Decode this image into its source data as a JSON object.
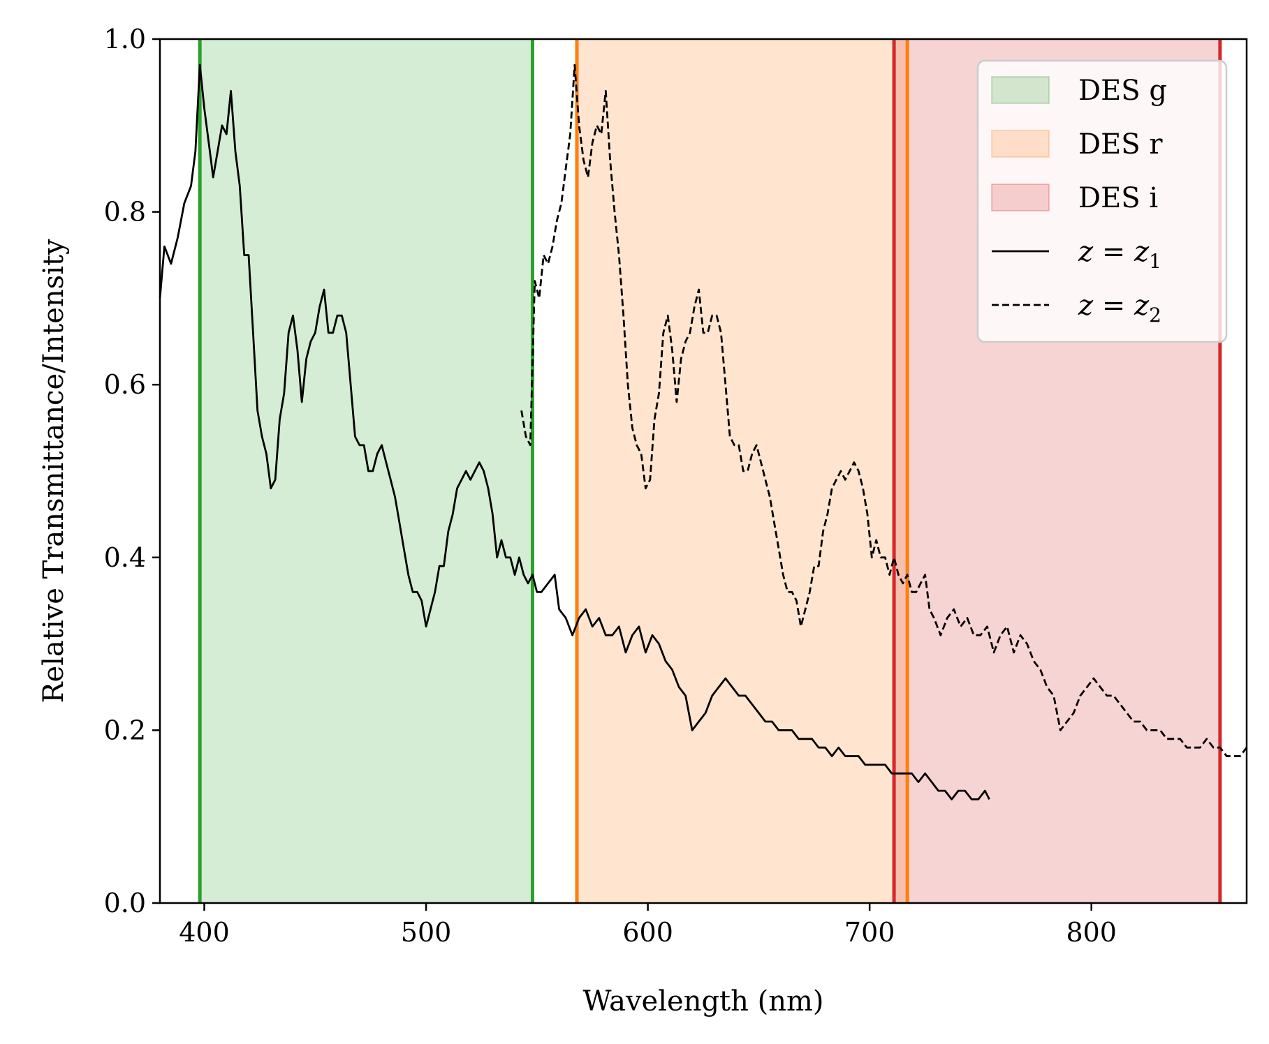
{
  "chart_data": {
    "type": "line",
    "xlabel": "Wavelength (nm)",
    "ylabel": "Relative Transmittance/Intensity",
    "xlim": [
      380,
      870
    ],
    "ylim": [
      0.0,
      1.0
    ],
    "xticks": [
      400,
      500,
      600,
      700,
      800
    ],
    "xtick_labels": [
      "400",
      "500",
      "600",
      "700",
      "800"
    ],
    "yticks": [
      0.0,
      0.2,
      0.4,
      0.6,
      0.8,
      1.0
    ],
    "ytick_labels": [
      "0.0",
      "0.2",
      "0.4",
      "0.6",
      "0.8",
      "1.0"
    ],
    "grid": false,
    "legend_position": "top-right",
    "bands": [
      {
        "name": "DES g",
        "range": [
          398,
          548
        ],
        "color": "#2ca02c"
      },
      {
        "name": "DES r",
        "range": [
          568,
          717
        ],
        "color": "#ff7f0e"
      },
      {
        "name": "DES i",
        "range": [
          711,
          858
        ],
        "color": "#d62728"
      }
    ],
    "series": [
      {
        "name": "z = z1",
        "style": "solid",
        "color": "#000000",
        "x": [
          380,
          382,
          385,
          388,
          391,
          394,
          396,
          398,
          400,
          402,
          404,
          406,
          408,
          410,
          412,
          414,
          416,
          418,
          420,
          422,
          424,
          426,
          428,
          430,
          432,
          434,
          436,
          438,
          440,
          442,
          444,
          446,
          448,
          450,
          452,
          454,
          456,
          458,
          460,
          462,
          464,
          466,
          468,
          470,
          472,
          474,
          476,
          478,
          480,
          482,
          484,
          486,
          488,
          490,
          492,
          494,
          496,
          498,
          500,
          502,
          504,
          506,
          508,
          510,
          512,
          514,
          516,
          518,
          520,
          522,
          524,
          526,
          528,
          530,
          532,
          534,
          536,
          538,
          540,
          542,
          544,
          546,
          548,
          550,
          552,
          555,
          558,
          560,
          563,
          566,
          569,
          572,
          575,
          578,
          581,
          584,
          587,
          590,
          593,
          596,
          599,
          602,
          605,
          608,
          611,
          614,
          617,
          620,
          623,
          626,
          629,
          632,
          635,
          638,
          641,
          644,
          647,
          650,
          653,
          656,
          659,
          662,
          665,
          668,
          671,
          674,
          677,
          680,
          683,
          686,
          689,
          692,
          695,
          698,
          701,
          704,
          707,
          710,
          713,
          716,
          719,
          722,
          725,
          728,
          731,
          734,
          737,
          740,
          743,
          746,
          749,
          752,
          754
        ],
        "y": [
          0.7,
          0.76,
          0.74,
          0.77,
          0.81,
          0.83,
          0.87,
          0.97,
          0.92,
          0.88,
          0.84,
          0.87,
          0.9,
          0.89,
          0.94,
          0.87,
          0.83,
          0.75,
          0.75,
          0.66,
          0.57,
          0.54,
          0.52,
          0.48,
          0.49,
          0.56,
          0.59,
          0.66,
          0.68,
          0.64,
          0.58,
          0.63,
          0.65,
          0.66,
          0.69,
          0.71,
          0.66,
          0.66,
          0.68,
          0.68,
          0.66,
          0.6,
          0.54,
          0.53,
          0.53,
          0.5,
          0.5,
          0.52,
          0.53,
          0.51,
          0.49,
          0.47,
          0.44,
          0.41,
          0.38,
          0.36,
          0.36,
          0.35,
          0.32,
          0.34,
          0.36,
          0.39,
          0.39,
          0.43,
          0.45,
          0.48,
          0.49,
          0.5,
          0.49,
          0.5,
          0.51,
          0.5,
          0.48,
          0.45,
          0.4,
          0.42,
          0.4,
          0.4,
          0.38,
          0.4,
          0.38,
          0.37,
          0.38,
          0.36,
          0.36,
          0.37,
          0.38,
          0.34,
          0.33,
          0.31,
          0.33,
          0.34,
          0.32,
          0.33,
          0.31,
          0.31,
          0.32,
          0.29,
          0.31,
          0.32,
          0.29,
          0.31,
          0.3,
          0.28,
          0.27,
          0.25,
          0.24,
          0.2,
          0.21,
          0.22,
          0.24,
          0.25,
          0.26,
          0.25,
          0.24,
          0.24,
          0.23,
          0.22,
          0.21,
          0.21,
          0.2,
          0.2,
          0.2,
          0.19,
          0.19,
          0.19,
          0.18,
          0.18,
          0.17,
          0.18,
          0.17,
          0.17,
          0.17,
          0.16,
          0.16,
          0.16,
          0.16,
          0.15,
          0.15,
          0.15,
          0.15,
          0.14,
          0.15,
          0.14,
          0.13,
          0.13,
          0.12,
          0.13,
          0.13,
          0.12,
          0.12,
          0.13,
          0.12
        ],
        "legend_label": "z = z1"
      },
      {
        "name": "z = z2",
        "style": "dashed",
        "color": "#000000",
        "x": [
          543,
          545,
          547,
          549,
          551,
          553,
          555,
          557,
          559,
          561,
          563,
          565,
          567,
          569,
          571,
          573,
          575,
          577,
          579,
          581,
          583,
          585,
          587,
          589,
          591,
          593,
          595,
          597,
          599,
          601,
          603,
          605,
          607,
          609,
          611,
          613,
          615,
          617,
          619,
          621,
          623,
          625,
          627,
          629,
          631,
          633,
          635,
          637,
          639,
          641,
          643,
          645,
          647,
          649,
          651,
          653,
          655,
          657,
          659,
          661,
          663,
          665,
          667,
          669,
          671,
          673,
          675,
          677,
          679,
          681,
          683,
          685,
          687,
          689,
          691,
          693,
          695,
          697,
          699,
          701,
          703,
          705,
          707,
          709,
          711,
          713,
          715,
          717,
          719,
          721,
          723,
          725,
          727,
          729,
          732,
          735,
          738,
          741,
          744,
          747,
          750,
          753,
          756,
          759,
          762,
          765,
          768,
          771,
          774,
          777,
          780,
          783,
          786,
          789,
          792,
          795,
          798,
          801,
          804,
          807,
          810,
          813,
          816,
          819,
          822,
          825,
          828,
          831,
          834,
          837,
          840,
          843,
          846,
          849,
          852,
          855,
          858,
          861,
          864,
          867,
          870
        ],
        "y": [
          0.57,
          0.54,
          0.53,
          0.72,
          0.7,
          0.75,
          0.74,
          0.76,
          0.79,
          0.81,
          0.85,
          0.89,
          0.97,
          0.9,
          0.86,
          0.84,
          0.88,
          0.9,
          0.89,
          0.94,
          0.86,
          0.8,
          0.75,
          0.68,
          0.6,
          0.55,
          0.53,
          0.52,
          0.48,
          0.49,
          0.56,
          0.59,
          0.66,
          0.68,
          0.64,
          0.58,
          0.63,
          0.65,
          0.66,
          0.69,
          0.71,
          0.66,
          0.66,
          0.68,
          0.68,
          0.66,
          0.6,
          0.54,
          0.53,
          0.53,
          0.5,
          0.5,
          0.52,
          0.53,
          0.51,
          0.49,
          0.47,
          0.44,
          0.41,
          0.38,
          0.36,
          0.36,
          0.35,
          0.32,
          0.34,
          0.36,
          0.39,
          0.39,
          0.43,
          0.45,
          0.48,
          0.49,
          0.5,
          0.49,
          0.5,
          0.51,
          0.5,
          0.48,
          0.45,
          0.4,
          0.42,
          0.4,
          0.4,
          0.38,
          0.4,
          0.38,
          0.37,
          0.38,
          0.36,
          0.36,
          0.37,
          0.38,
          0.34,
          0.33,
          0.31,
          0.33,
          0.34,
          0.32,
          0.33,
          0.31,
          0.31,
          0.32,
          0.29,
          0.31,
          0.32,
          0.29,
          0.31,
          0.3,
          0.28,
          0.27,
          0.25,
          0.24,
          0.2,
          0.21,
          0.22,
          0.24,
          0.25,
          0.26,
          0.25,
          0.24,
          0.24,
          0.23,
          0.22,
          0.21,
          0.21,
          0.2,
          0.2,
          0.2,
          0.19,
          0.19,
          0.19,
          0.18,
          0.18,
          0.18,
          0.19,
          0.18,
          0.18,
          0.17,
          0.17,
          0.17,
          0.18
        ],
        "legend_label": "z = z2"
      }
    ]
  },
  "legend": {
    "entries": [
      {
        "label": "DES g",
        "kind": "patch",
        "color": "#2ca02c"
      },
      {
        "label": "DES r",
        "kind": "patch",
        "color": "#ff7f0e"
      },
      {
        "label": "DES i",
        "kind": "patch",
        "color": "#d62728"
      },
      {
        "label_var": "z",
        "label_eq": "=",
        "label_rhs": "z",
        "label_sub": "1",
        "kind": "line-solid"
      },
      {
        "label_var": "z",
        "label_eq": "=",
        "label_rhs": "z",
        "label_sub": "2",
        "kind": "line-dashed"
      }
    ]
  }
}
